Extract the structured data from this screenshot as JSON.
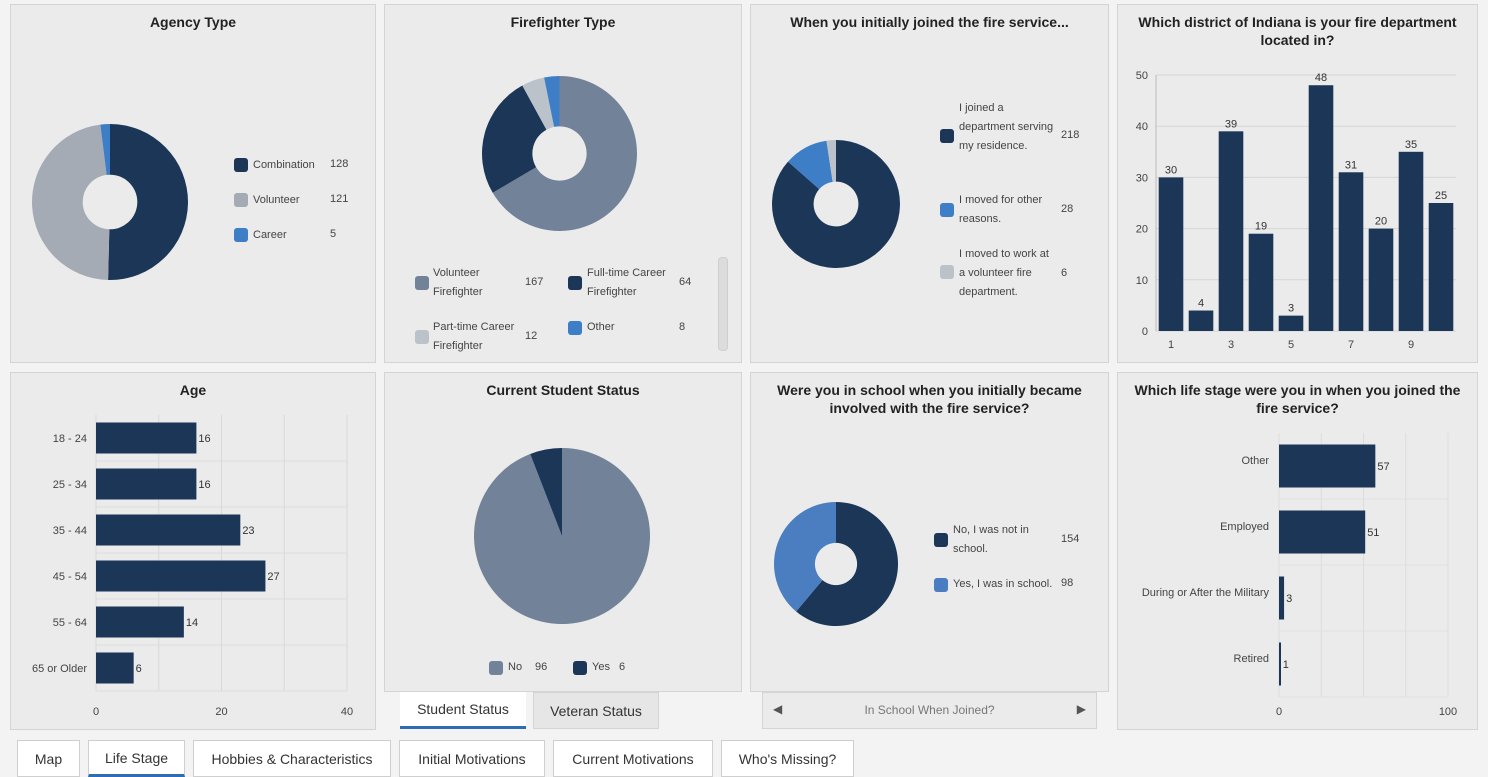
{
  "colors": {
    "navy": "#1c3657",
    "slate": "#728399",
    "light_gray": "#a4abb5",
    "pale_gray": "#bcc2ca",
    "blue": "#3d7ec7",
    "mid_blue": "#4a7ec0",
    "tab_accent": "#2f6db3"
  },
  "agency": {
    "title": "Agency Type",
    "items": [
      {
        "label": "Combination",
        "value": "128",
        "color": "#1c3657"
      },
      {
        "label": "Volunteer",
        "value": "121",
        "color": "#a4abb5"
      },
      {
        "label": "Career",
        "value": "5",
        "color": "#3d7ec7"
      }
    ]
  },
  "firefighter": {
    "title": "Firefighter Type",
    "items": [
      {
        "label": "Volunteer Firefighter",
        "value": "167",
        "color": "#728399"
      },
      {
        "label": "Full-time Career Firefighter",
        "value": "64",
        "color": "#1c3657"
      },
      {
        "label": "Part-time Career Firefighter",
        "value": "12",
        "color": "#bcc2ca"
      },
      {
        "label": "Other",
        "value": "8",
        "color": "#3d7ec7"
      }
    ]
  },
  "joined": {
    "title": "When you initially joined the fire service...",
    "items": [
      {
        "label": "I joined a department serving my residence.",
        "value": "218",
        "color": "#1c3657"
      },
      {
        "label": "I moved for other reasons.",
        "value": "28",
        "color": "#3d7ec7"
      },
      {
        "label": "I moved to work at a volunteer fire department.",
        "value": "6",
        "color": "#bcc2ca"
      }
    ]
  },
  "district": {
    "title": "Which district of Indiana is your fire department located in?"
  },
  "age": {
    "title": "Age"
  },
  "student": {
    "title": "Current Student Status",
    "items": [
      {
        "label": "No",
        "value": "96",
        "color": "#728399"
      },
      {
        "label": "Yes",
        "value": "6",
        "color": "#1c3657"
      }
    ],
    "tabs": [
      "Student Status",
      "Veteran Status"
    ]
  },
  "school": {
    "title": "Were you in school when you initially became involved with the fire service?",
    "items": [
      {
        "label": "No, I was not in school.",
        "value": "154",
        "color": "#1c3657"
      },
      {
        "label": "Yes, I was in school.",
        "value": "98",
        "color": "#4a7ec0"
      }
    ],
    "nav_label": "In School When Joined?"
  },
  "lifestage": {
    "title": "Which life stage were you in when you joined the fire service?"
  },
  "bottom_tabs": [
    "Map",
    "Life Stage",
    "Hobbies & Characteristics",
    "Initial Motivations",
    "Current Motivations",
    "Who's Missing?"
  ],
  "chart_data": [
    {
      "type": "pie",
      "title": "Agency Type",
      "categories": [
        "Combination",
        "Volunteer",
        "Career"
      ],
      "values": [
        128,
        121,
        5
      ]
    },
    {
      "type": "pie",
      "title": "Firefighter Type",
      "categories": [
        "Volunteer Firefighter",
        "Full-time Career Firefighter",
        "Part-time Career Firefighter",
        "Other"
      ],
      "values": [
        167,
        64,
        12,
        8
      ]
    },
    {
      "type": "pie",
      "title": "When you initially joined the fire service...",
      "categories": [
        "I joined a department serving my residence.",
        "I moved for other reasons.",
        "I moved to work at a volunteer fire department."
      ],
      "values": [
        218,
        28,
        6
      ]
    },
    {
      "type": "bar",
      "title": "Which district of Indiana is your fire department located in?",
      "categories": [
        "1",
        "2",
        "3",
        "4",
        "5",
        "6",
        "7",
        "8",
        "9",
        "10"
      ],
      "values": [
        30,
        4,
        39,
        19,
        3,
        48,
        31,
        20,
        35,
        25
      ],
      "xticks": [
        "1",
        "3",
        "5",
        "7",
        "9"
      ],
      "yticks": [
        0,
        10,
        20,
        30,
        40,
        50
      ],
      "ylim": [
        0,
        50
      ],
      "grid": true
    },
    {
      "type": "bar",
      "orientation": "horizontal",
      "title": "Age",
      "categories": [
        "18 - 24",
        "25 - 34",
        "35 - 44",
        "45 - 54",
        "55 - 64",
        "65 or Older"
      ],
      "values": [
        16,
        16,
        23,
        27,
        14,
        6
      ],
      "xticks": [
        0,
        20,
        40
      ],
      "xlim": [
        0,
        40
      ],
      "grid": true
    },
    {
      "type": "pie",
      "title": "Current Student Status",
      "categories": [
        "No",
        "Yes"
      ],
      "values": [
        96,
        6
      ]
    },
    {
      "type": "pie",
      "title": "Were you in school when you initially became involved with the fire service?",
      "categories": [
        "No, I was not in school.",
        "Yes, I was in school."
      ],
      "values": [
        154,
        98
      ]
    },
    {
      "type": "bar",
      "orientation": "horizontal",
      "title": "Which life stage were you in when you joined the fire service?",
      "categories": [
        "Other",
        "Employed",
        "During or After the Military",
        "Retired"
      ],
      "values": [
        57,
        51,
        3,
        1
      ],
      "xticks": [
        0,
        100
      ],
      "xlim": [
        0,
        100
      ],
      "grid": true
    }
  ]
}
